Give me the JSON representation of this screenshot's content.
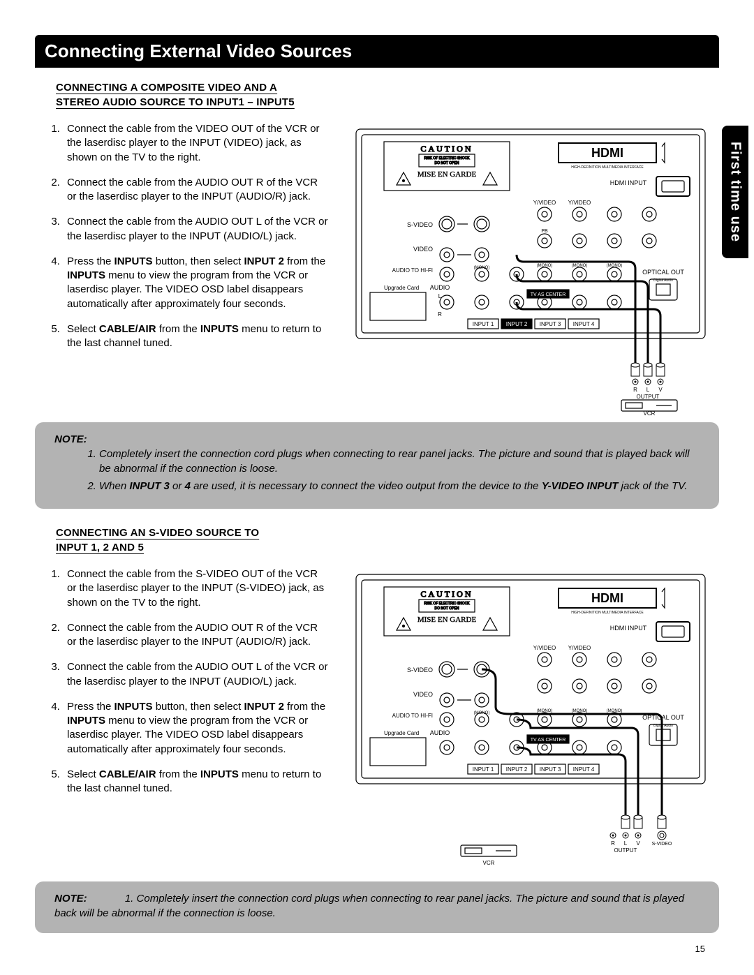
{
  "page_number": "15",
  "side_tab": "First time use",
  "title": "Connecting External Video Sources",
  "colors": {
    "title_bg": "#000000",
    "title_fg": "#ffffff",
    "note_bg": "#b3b3b3",
    "page_bg": "#ffffff",
    "diagram_stroke": "#000000"
  },
  "section1": {
    "heading": "CONNECTING A COMPOSITE VIDEO AND A STEREO AUDIO SOURCE TO INPUT1 – INPUT5",
    "steps": [
      "Connect the cable from the VIDEO OUT of the VCR or the laserdisc player to the INPUT (VIDEO) jack, as shown on the TV to the right.",
      "Connect the cable from the AUDIO OUT R of the VCR or the laserdisc player to the INPUT (AUDIO/R) jack.",
      "Connect the cable from the AUDIO OUT L of the VCR or the laserdisc player to the INPUT (AUDIO/L) jack.",
      "Press the <b>INPUTS</b> button, then select <b>INPUT 2</b> from the <b>INPUTS</b> menu to view the program from the VCR or laserdisc player. The VIDEO OSD label disappears automatically after approximately four seconds.",
      "Select <b>CABLE/AIR</b> from the <b>INPUTS</b> menu to return to the last channel tuned."
    ]
  },
  "note1": {
    "label": "NOTE:",
    "items": [
      "Completely insert the connection cord plugs when connecting to rear panel jacks. The picture and sound that is played back will be abnormal if the connection is loose.",
      "When <b>INPUT 3</b> or <b>4</b> are used, it is necessary to connect the video output from the device to the <b>Y-VIDEO INPUT</b> jack of the TV."
    ]
  },
  "section2": {
    "heading": "CONNECTING AN S-VIDEO SOURCE TO INPUT 1, 2 AND 5",
    "steps": [
      "Connect the cable from the S-VIDEO OUT of the VCR or the laserdisc player to the INPUT (S-VIDEO) jack, as shown on the TV to the right.",
      "Connect the cable from the AUDIO OUT R of the VCR or the laserdisc player to the INPUT (AUDIO/R) jack.",
      "Connect the cable from the AUDIO OUT L of the VCR or the laserdisc player to the INPUT (AUDIO/L) jack.",
      "Press the <b>INPUTS</b> button, then select <b>INPUT 2</b> from the <b>INPUTS</b> menu to view the program from the VCR or laserdisc player. The VIDEO OSD label disappears automatically after approximately four seconds.",
      "Select <b>CABLE/AIR</b> from the <b>INPUTS</b> menu to return to the last channel tuned."
    ]
  },
  "note2": {
    "label": "NOTE:",
    "text": "1.  Completely insert the connection cord plugs when connecting to rear panel jacks. The picture and sound that is played back will be abnormal if the connection is loose."
  },
  "diagram": {
    "caution": "CAUTION",
    "mise": "MISE EN GARDE",
    "risk1": "RISK OF ELECTRIC SHOCK",
    "risk2": "DO NOT OPEN",
    "hdmi": "HDMI",
    "hdmi_sub": "HIGH-DEFINITION MULTIMEDIA INTERFACE",
    "hdmi_input": "HDMI INPUT",
    "svideo": "S-VIDEO",
    "video": "VIDEO",
    "audio_hifi": "AUDIO TO HI-FI",
    "upgrade": "Upgrade Card",
    "audio": "AUDIO",
    "r": "R",
    "l": "L",
    "v": "V",
    "yvideo": "Y/VIDEO",
    "pb": "PB",
    "pr": "PR",
    "mono": "(MONO)",
    "tv_center": "TV AS CENTER",
    "optical": "OPTICAL OUT",
    "digital": "Digital Audio",
    "input1": "INPUT 1",
    "input2": "INPUT 2",
    "input3": "INPUT 3",
    "input4": "INPUT 4",
    "output": "OUTPUT",
    "vcr": "VCR",
    "svideo_out": "S-VIDEO"
  }
}
